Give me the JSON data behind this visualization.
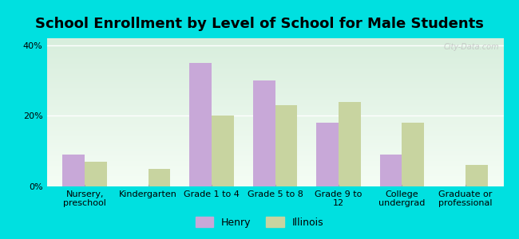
{
  "title": "School Enrollment by Level of School for Male Students",
  "categories": [
    "Nursery,\npreschool",
    "Kindergarten",
    "Grade 1 to 4",
    "Grade 5 to 8",
    "Grade 9 to\n12",
    "College\nundergrad",
    "Graduate or\nprofessional"
  ],
  "henry_values": [
    9.0,
    0.0,
    35.0,
    30.0,
    18.0,
    9.0,
    0.0
  ],
  "illinois_values": [
    7.0,
    5.0,
    20.0,
    23.0,
    24.0,
    18.0,
    6.0
  ],
  "henry_color": "#c8a8d8",
  "illinois_color": "#c8d4a0",
  "background_color": "#00e0e0",
  "plot_bg_start": "#ffffff",
  "plot_bg_end": "#d8eedd",
  "ylim": [
    0,
    42
  ],
  "yticks": [
    0,
    20,
    40
  ],
  "ytick_labels": [
    "0%",
    "20%",
    "40%"
  ],
  "bar_width": 0.35,
  "title_fontsize": 13,
  "tick_fontsize": 8,
  "legend_henry": "Henry",
  "legend_illinois": "Illinois",
  "watermark": "City-Data.com"
}
